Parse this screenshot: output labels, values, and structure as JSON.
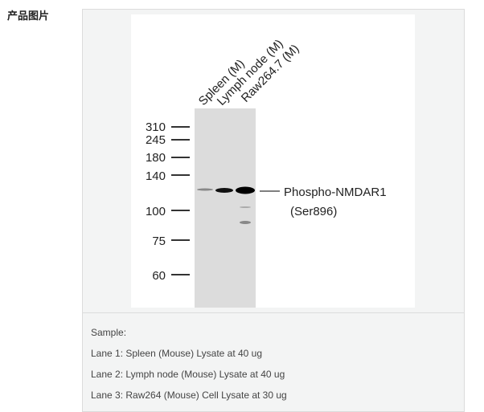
{
  "section_label": "产品图片",
  "blot": {
    "lanes": [
      "Spleen (M)",
      "Lymph node (M)",
      "Raw264.7 (M)"
    ],
    "markers": [
      "310",
      "245",
      "180",
      "140",
      "100",
      "75",
      "60"
    ],
    "target_name": "Phospho-NMDAR1",
    "target_site": "(Ser896)"
  },
  "caption": {
    "title": "Sample:",
    "lines": [
      "Lane 1: Spleen (Mouse) Lysate at 40 ug",
      "Lane 2: Lymph node (Mouse) Lysate at 40 ug",
      "Lane 3: Raw264 (Mouse) Cell Lysate at 30 ug"
    ]
  }
}
